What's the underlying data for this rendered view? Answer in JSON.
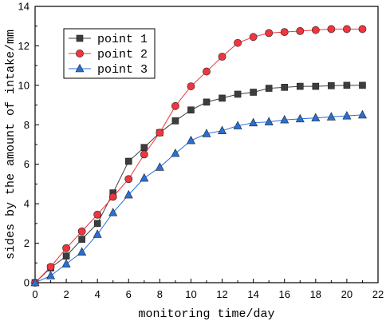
{
  "chart_data": {
    "type": "line",
    "xlabel": "monitoring time/day",
    "ylabel": "sides by the amount of intake/mm",
    "xlim": [
      0,
      22
    ],
    "ylim": [
      0,
      14
    ],
    "xticks": [
      0,
      2,
      4,
      6,
      8,
      10,
      12,
      14,
      16,
      18,
      20,
      22
    ],
    "yticks": [
      0,
      2,
      4,
      6,
      8,
      10,
      12,
      14
    ],
    "grid": false,
    "legend_position": "top-left",
    "x": [
      0,
      1,
      2,
      3,
      4,
      5,
      6,
      7,
      8,
      9,
      10,
      11,
      12,
      13,
      14,
      15,
      16,
      17,
      18,
      19,
      20,
      21
    ],
    "series": [
      {
        "name": "point 1",
        "marker": "square",
        "color": "#3d3d3d",
        "values": [
          0,
          0.75,
          1.35,
          2.2,
          3.0,
          4.55,
          6.15,
          6.85,
          7.6,
          8.2,
          8.75,
          9.15,
          9.35,
          9.55,
          9.65,
          9.85,
          9.9,
          9.95,
          9.95,
          9.98,
          10.0,
          10.0
        ]
      },
      {
        "name": "point 2",
        "marker": "circle",
        "color": "#f0353f",
        "values": [
          0,
          0.8,
          1.75,
          2.6,
          3.45,
          4.35,
          5.25,
          6.5,
          7.6,
          8.95,
          9.95,
          10.7,
          11.45,
          12.15,
          12.45,
          12.65,
          12.7,
          12.75,
          12.8,
          12.85,
          12.85,
          12.85
        ]
      },
      {
        "name": "point 3",
        "marker": "triangle",
        "color": "#2a6fd6",
        "values": [
          0,
          0.35,
          0.95,
          1.55,
          2.45,
          3.55,
          4.45,
          5.3,
          5.85,
          6.55,
          7.2,
          7.55,
          7.7,
          7.95,
          8.1,
          8.15,
          8.25,
          8.3,
          8.35,
          8.4,
          8.45,
          8.5
        ]
      }
    ]
  }
}
